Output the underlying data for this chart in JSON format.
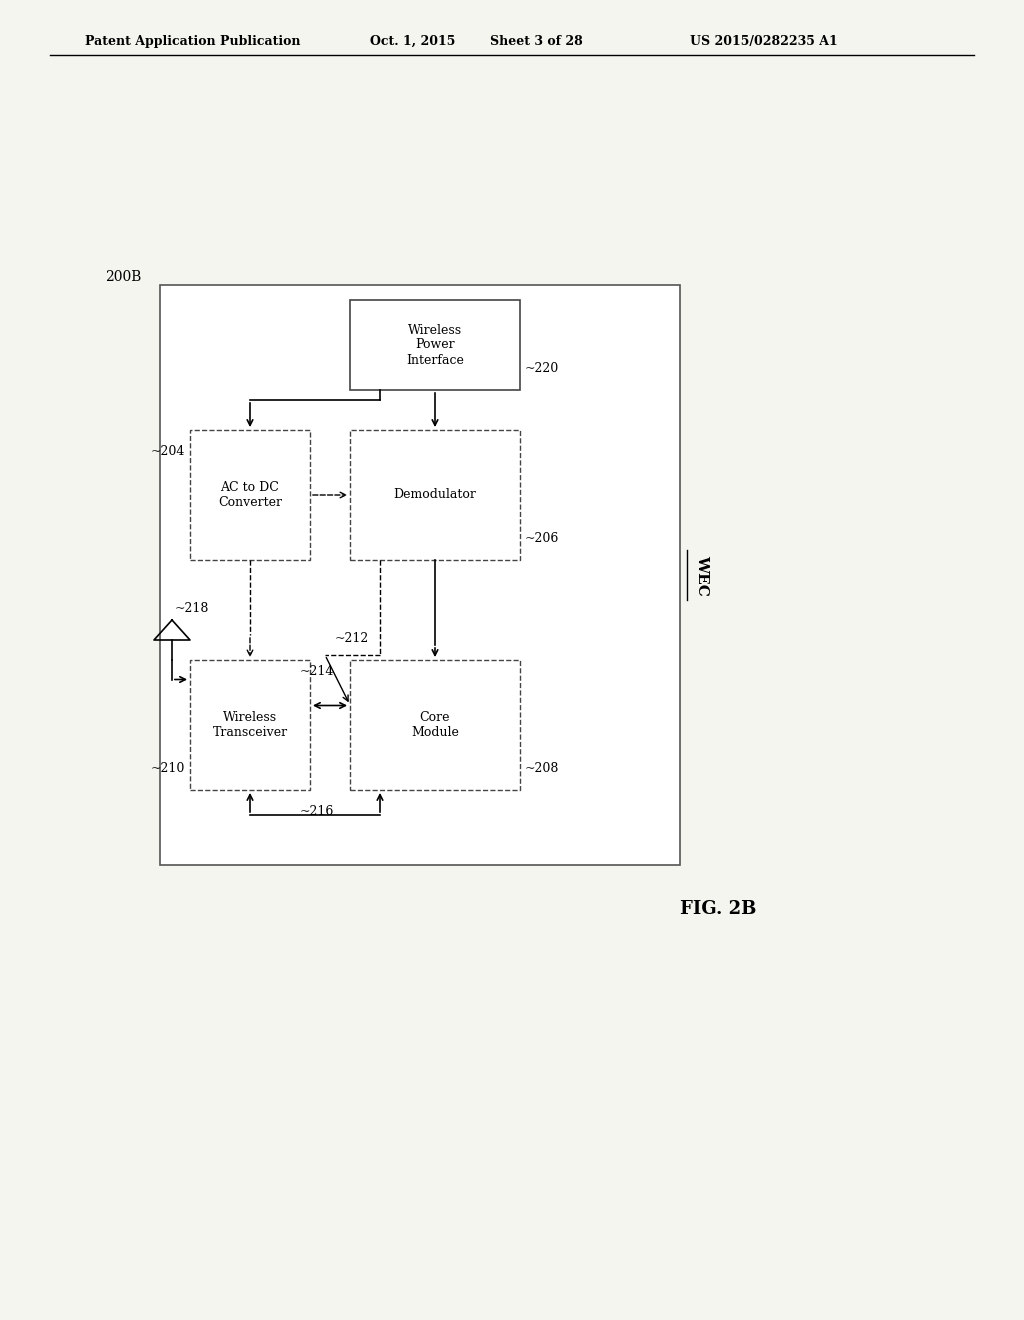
{
  "bg_color": "#f5f5f0",
  "header_text": "Patent Application Publication",
  "header_date": "Oct. 1, 2015",
  "header_sheet": "Sheet 3 of 28",
  "header_patent": "US 2015/0282235 A1",
  "fig_label": "200B",
  "fig_caption": "FIG. 2B",
  "wec_label": "WEC",
  "boxes": {
    "wpi": {
      "label": "Wireless\nPower\nInterface",
      "ref": "220"
    },
    "demod": {
      "label": "Demodulator",
      "ref": "206"
    },
    "ac_dc": {
      "label": "AC to DC\nConverter",
      "ref": "204"
    },
    "core": {
      "label": "Core\nModule",
      "ref": "208"
    },
    "transceiver": {
      "label": "Wireless\nTransceiver",
      "ref": "210"
    }
  },
  "antenna_ref": "218",
  "connections": [
    {
      "from": "wpi_bottom",
      "to": "demod_top",
      "style": "solid_arrow"
    },
    {
      "from": "wpi_bottom_left",
      "to": "ac_dc_top",
      "style": "solid_arrow"
    },
    {
      "from": "ac_dc_right",
      "to": "demod_left",
      "style": "dashed_arrow"
    },
    {
      "from": "demod_bottom",
      "to": "core_top",
      "style": "solid_arrow"
    },
    {
      "from": "demod_bottom_left",
      "to": "transceiver_right_top",
      "style": "dashed"
    },
    {
      "from": "core_left",
      "to": "transceiver_right",
      "style": "double_arrow",
      "ref": "214"
    },
    {
      "from": "core_bottom_left",
      "to": "transceiver_right_bottom",
      "style": "double_arrow",
      "ref": "216"
    },
    {
      "from": "antenna_top",
      "to": "transceiver_left",
      "style": "solid_arrow"
    }
  ]
}
